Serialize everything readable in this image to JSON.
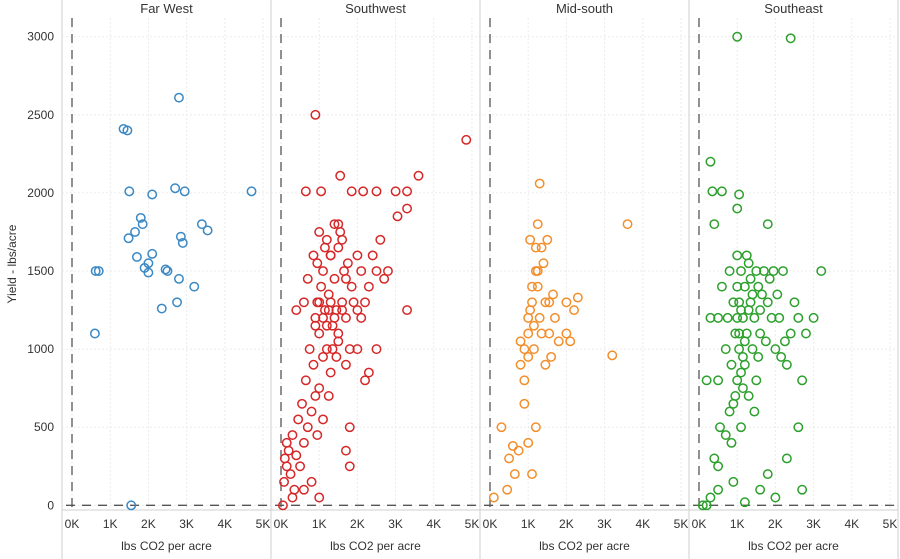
{
  "chart_data": {
    "type": "scatter",
    "title": "",
    "ylabel": "Yield - lbs/acre",
    "xlabel": "lbs CO2 per acre",
    "ylim": [
      -30,
      3120
    ],
    "xlim": [
      0,
      5000
    ],
    "y_ticks": [
      "0",
      "500",
      "1000",
      "1500",
      "2000",
      "2500",
      "3000"
    ],
    "y_tick_values": [
      0,
      500,
      1000,
      1500,
      2000,
      2500,
      3000
    ],
    "x_ticks": [
      "0K",
      "1K",
      "2K",
      "3K",
      "4K",
      "5K"
    ],
    "x_tick_values": [
      0,
      1000,
      2000,
      3000,
      4000,
      5000
    ],
    "grid": true,
    "reference_lines": {
      "x": 0,
      "y": 0,
      "style": "dashed"
    },
    "marker": "hollow-circle",
    "panels": [
      {
        "region": "Far West",
        "color": "#3a88c4",
        "points": [
          [
            600,
            1100
          ],
          [
            620,
            1500
          ],
          [
            700,
            1500
          ],
          [
            1350,
            2410
          ],
          [
            1450,
            2400
          ],
          [
            1500,
            2010
          ],
          [
            1480,
            1710
          ],
          [
            1650,
            1750
          ],
          [
            1700,
            1590
          ],
          [
            1800,
            1840
          ],
          [
            1850,
            1800
          ],
          [
            1900,
            1520
          ],
          [
            2000,
            1490
          ],
          [
            2000,
            1550
          ],
          [
            2100,
            1990
          ],
          [
            2100,
            1610
          ],
          [
            2350,
            1260
          ],
          [
            2450,
            1510
          ],
          [
            2500,
            1500
          ],
          [
            2700,
            2030
          ],
          [
            2750,
            1300
          ],
          [
            2800,
            1450
          ],
          [
            2800,
            2610
          ],
          [
            2850,
            1720
          ],
          [
            2900,
            1680
          ],
          [
            2950,
            2010
          ],
          [
            3200,
            1400
          ],
          [
            3400,
            1800
          ],
          [
            3550,
            1760
          ],
          [
            4700,
            2010
          ],
          [
            1550,
            0
          ]
        ]
      },
      {
        "region": "Southwest",
        "color": "#d62728",
        "points": [
          [
            50,
            0
          ],
          [
            80,
            150
          ],
          [
            100,
            300
          ],
          [
            150,
            250
          ],
          [
            150,
            400
          ],
          [
            200,
            350
          ],
          [
            250,
            200
          ],
          [
            300,
            450
          ],
          [
            350,
            100
          ],
          [
            400,
            320
          ],
          [
            450,
            550
          ],
          [
            500,
            250
          ],
          [
            550,
            650
          ],
          [
            600,
            400
          ],
          [
            650,
            800
          ],
          [
            700,
            500
          ],
          [
            750,
            1000
          ],
          [
            800,
            600
          ],
          [
            800,
            150
          ],
          [
            850,
            900
          ],
          [
            900,
            700
          ],
          [
            900,
            1200
          ],
          [
            950,
            1300
          ],
          [
            1000,
            750
          ],
          [
            1000,
            1100
          ],
          [
            1000,
            50
          ],
          [
            1050,
            1400
          ],
          [
            1100,
            950
          ],
          [
            1100,
            1500
          ],
          [
            1150,
            1250
          ],
          [
            1200,
            1700
          ],
          [
            1200,
            1000
          ],
          [
            1250,
            1350
          ],
          [
            1300,
            1600
          ],
          [
            1300,
            850
          ],
          [
            1350,
            1150
          ],
          [
            1400,
            1800
          ],
          [
            1400,
            1450
          ],
          [
            1450,
            1250
          ],
          [
            1500,
            1650
          ],
          [
            1500,
            1050
          ],
          [
            1550,
            1750
          ],
          [
            1600,
            1300
          ],
          [
            1650,
            1500
          ],
          [
            1700,
            1200
          ],
          [
            1750,
            1550
          ],
          [
            1800,
            1000
          ],
          [
            1800,
            500
          ],
          [
            1850,
            1400
          ],
          [
            1900,
            1300
          ],
          [
            2000,
            1600
          ],
          [
            2000,
            1000
          ],
          [
            2100,
            1500
          ],
          [
            2100,
            1200
          ],
          [
            2200,
            1300
          ],
          [
            2200,
            800
          ],
          [
            2300,
            1400
          ],
          [
            2300,
            850
          ],
          [
            2500,
            1500
          ],
          [
            2500,
            1000
          ],
          [
            2700,
            1450
          ],
          [
            2800,
            1500
          ],
          [
            3300,
            1250
          ],
          [
            900,
            2500
          ],
          [
            650,
            2010
          ],
          [
            1050,
            2010
          ],
          [
            1550,
            2110
          ],
          [
            1850,
            2010
          ],
          [
            2150,
            2010
          ],
          [
            2500,
            2010
          ],
          [
            3000,
            2010
          ],
          [
            3300,
            2010
          ],
          [
            3600,
            2110
          ],
          [
            3050,
            1850
          ],
          [
            3300,
            1900
          ],
          [
            4850,
            2340
          ],
          [
            1000,
            1750
          ],
          [
            1500,
            1800
          ],
          [
            850,
            1600
          ],
          [
            700,
            1450
          ],
          [
            600,
            1300
          ],
          [
            400,
            1250
          ],
          [
            1300,
            1600
          ],
          [
            1600,
            1700
          ],
          [
            950,
            1550
          ],
          [
            1150,
            1650
          ],
          [
            1250,
            1250
          ],
          [
            1350,
            1000
          ],
          [
            1450,
            950
          ],
          [
            1700,
            900
          ],
          [
            1250,
            700
          ],
          [
            1100,
            550
          ],
          [
            950,
            450
          ],
          [
            1800,
            250
          ],
          [
            1700,
            350
          ],
          [
            600,
            100
          ],
          [
            300,
            50
          ],
          [
            1000,
            1300
          ],
          [
            1100,
            1200
          ],
          [
            1200,
            1150
          ],
          [
            1300,
            1300
          ],
          [
            1400,
            1200
          ],
          [
            1500,
            1100
          ],
          [
            1600,
            1250
          ],
          [
            1700,
            1450
          ],
          [
            2000,
            1250
          ],
          [
            2400,
            1600
          ],
          [
            2600,
            1700
          ],
          [
            900,
            1150
          ]
        ]
      },
      {
        "region": "Mid-south",
        "color": "#f28e2b",
        "points": [
          [
            100,
            50
          ],
          [
            300,
            500
          ],
          [
            450,
            100
          ],
          [
            500,
            300
          ],
          [
            600,
            380
          ],
          [
            650,
            200
          ],
          [
            750,
            350
          ],
          [
            900,
            650
          ],
          [
            1000,
            950
          ],
          [
            1000,
            1100
          ],
          [
            1050,
            1250
          ],
          [
            1100,
            1400
          ],
          [
            1150,
            1000
          ],
          [
            1200,
            1500
          ],
          [
            1250,
            1800
          ],
          [
            1300,
            2060
          ],
          [
            1300,
            1200
          ],
          [
            1350,
            1650
          ],
          [
            1400,
            1550
          ],
          [
            1450,
            1300
          ],
          [
            1500,
            1700
          ],
          [
            1550,
            1100
          ],
          [
            1600,
            950
          ],
          [
            1700,
            1200
          ],
          [
            1800,
            1050
          ],
          [
            2000,
            1300
          ],
          [
            2000,
            1100
          ],
          [
            2100,
            1050
          ],
          [
            2200,
            1250
          ],
          [
            2300,
            1330
          ],
          [
            3200,
            960
          ],
          [
            3600,
            1800
          ],
          [
            1000,
            400
          ],
          [
            1100,
            200
          ],
          [
            1200,
            500
          ],
          [
            900,
            800
          ],
          [
            1200,
            1650
          ],
          [
            1250,
            1500
          ],
          [
            1050,
            1700
          ],
          [
            900,
            1000
          ],
          [
            1000,
            1200
          ],
          [
            1100,
            1300
          ],
          [
            1150,
            1150
          ],
          [
            1250,
            1400
          ],
          [
            1350,
            1100
          ],
          [
            1450,
            900
          ],
          [
            1550,
            1300
          ],
          [
            1650,
            1350
          ],
          [
            800,
            900
          ],
          [
            800,
            1050
          ]
        ]
      },
      {
        "region": "Southeast",
        "color": "#2ca02c",
        "points": [
          [
            1000,
            3000
          ],
          [
            2400,
            2990
          ],
          [
            300,
            2200
          ],
          [
            350,
            2010
          ],
          [
            600,
            2010
          ],
          [
            1050,
            1990
          ],
          [
            400,
            1800
          ],
          [
            1000,
            1900
          ],
          [
            1800,
            1800
          ],
          [
            3200,
            1500
          ],
          [
            500,
            1200
          ],
          [
            500,
            800
          ],
          [
            550,
            500
          ],
          [
            600,
            1400
          ],
          [
            700,
            1000
          ],
          [
            750,
            1200
          ],
          [
            800,
            600
          ],
          [
            850,
            900
          ],
          [
            900,
            1300
          ],
          [
            950,
            700
          ],
          [
            950,
            1100
          ],
          [
            1000,
            1600
          ],
          [
            1000,
            800
          ],
          [
            1050,
            1000
          ],
          [
            1100,
            1500
          ],
          [
            1100,
            500
          ],
          [
            1150,
            1200
          ],
          [
            1200,
            900
          ],
          [
            1200,
            1400
          ],
          [
            1250,
            1100
          ],
          [
            1300,
            1550
          ],
          [
            1300,
            700
          ],
          [
            1350,
            1300
          ],
          [
            1400,
            1000
          ],
          [
            1450,
            1200
          ],
          [
            1500,
            1500
          ],
          [
            1500,
            800
          ],
          [
            1550,
            1400
          ],
          [
            1600,
            1100
          ],
          [
            1700,
            1500
          ],
          [
            1800,
            1300
          ],
          [
            1900,
            1200
          ],
          [
            1950,
            1500
          ],
          [
            2000,
            1000
          ],
          [
            2100,
            1200
          ],
          [
            2200,
            1500
          ],
          [
            2300,
            900
          ],
          [
            2400,
            1100
          ],
          [
            2500,
            1300
          ],
          [
            2600,
            1200
          ],
          [
            2700,
            800
          ],
          [
            2800,
            1100
          ],
          [
            3000,
            1200
          ],
          [
            100,
            0
          ],
          [
            200,
            0
          ],
          [
            300,
            50
          ],
          [
            500,
            100
          ],
          [
            900,
            150
          ],
          [
            1200,
            20
          ],
          [
            1600,
            100
          ],
          [
            1800,
            200
          ],
          [
            2000,
            50
          ],
          [
            2300,
            300
          ],
          [
            2600,
            500
          ],
          [
            2700,
            100
          ],
          [
            200,
            800
          ],
          [
            300,
            1200
          ],
          [
            400,
            300
          ],
          [
            500,
            250
          ],
          [
            700,
            450
          ],
          [
            800,
            1500
          ],
          [
            850,
            400
          ],
          [
            900,
            650
          ],
          [
            1000,
            1400
          ],
          [
            1050,
            1300
          ],
          [
            1100,
            850
          ],
          [
            1150,
            750
          ],
          [
            1250,
            1600
          ],
          [
            1350,
            1450
          ],
          [
            1450,
            600
          ],
          [
            1550,
            950
          ],
          [
            1650,
            1350
          ],
          [
            1750,
            1050
          ],
          [
            1850,
            1450
          ],
          [
            2050,
            1350
          ],
          [
            2150,
            950
          ],
          [
            2250,
            1050
          ],
          [
            1000,
            1200
          ],
          [
            1050,
            1100
          ],
          [
            1100,
            1250
          ],
          [
            1150,
            950
          ],
          [
            1200,
            1050
          ],
          [
            1300,
            1250
          ],
          [
            1400,
            1350
          ],
          [
            1600,
            1250
          ]
        ]
      }
    ]
  }
}
